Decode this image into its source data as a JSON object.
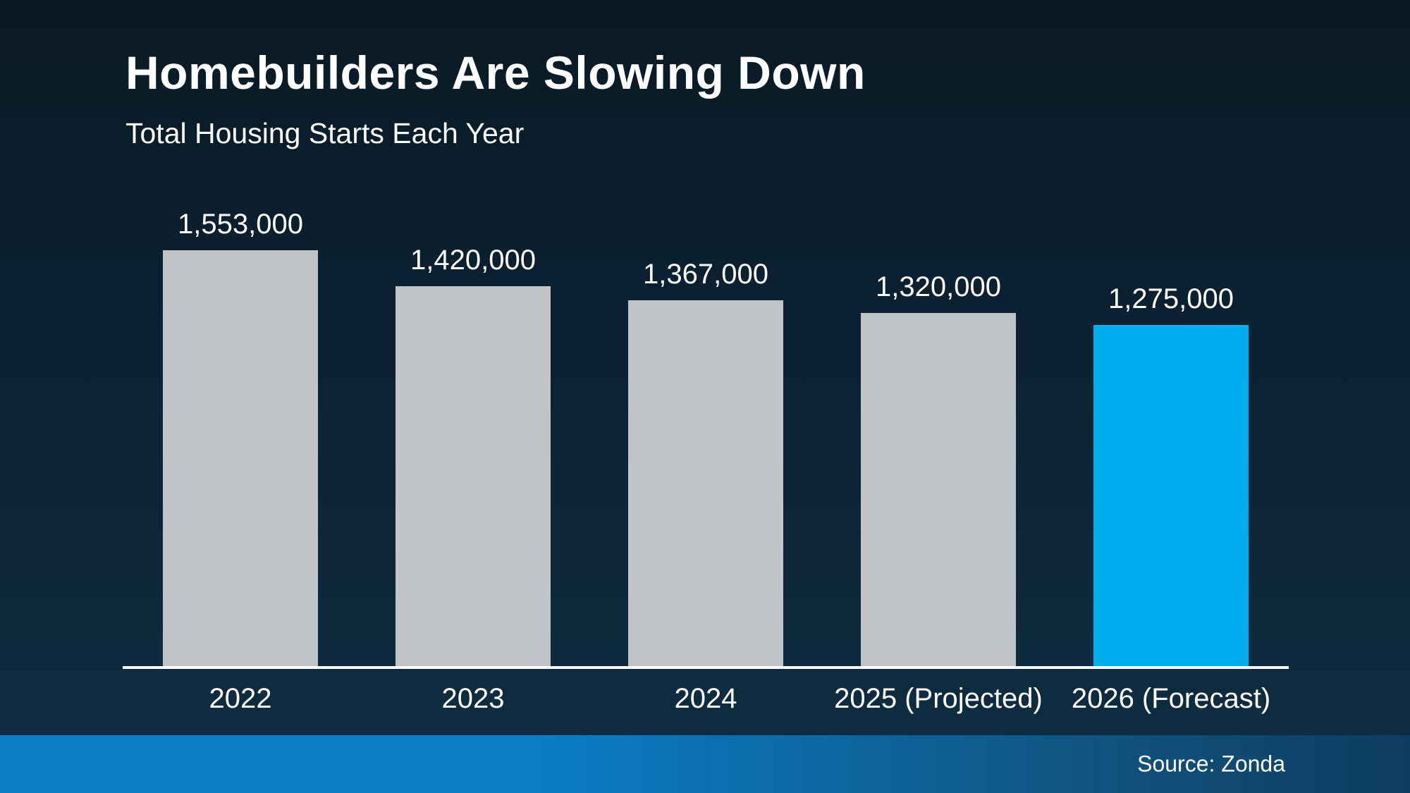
{
  "header": {
    "title": "Homebuilders Are Slowing Down",
    "subtitle": "Total Housing Starts Each Year"
  },
  "footer": {
    "source_label": "Source: Zonda"
  },
  "colors": {
    "background_top": "#0a1a24",
    "background_bottom": "#0f2e44",
    "bar_default": "#c0c4c7",
    "bar_highlight": "#00aeef",
    "axis_line": "#fdfdfd",
    "footer_gradient_left": "#0a7dc6",
    "footer_gradient_right": "#0d3c60",
    "text": "#ffffff"
  },
  "chart_data": {
    "type": "bar",
    "title": "Homebuilders Are Slowing Down",
    "subtitle": "Total Housing Starts Each Year",
    "categories": [
      "2022",
      "2023",
      "2024",
      "2025 (Projected)",
      "2026 (Forecast)"
    ],
    "values": [
      1553000,
      1420000,
      1367000,
      1320000,
      1275000
    ],
    "value_labels": [
      "1,553,000",
      "1,420,000",
      "1,367,000",
      "1,320,000",
      "1,275,000"
    ],
    "bar_colors": [
      "#c0c4c7",
      "#c0c4c7",
      "#c0c4c7",
      "#c0c4c7",
      "#00aeef"
    ],
    "highlight_index": 4,
    "xlabel": "",
    "ylabel": "",
    "ylim": [
      0,
      1650000
    ],
    "grid": false,
    "legend": false,
    "source": "Source: Zonda"
  }
}
